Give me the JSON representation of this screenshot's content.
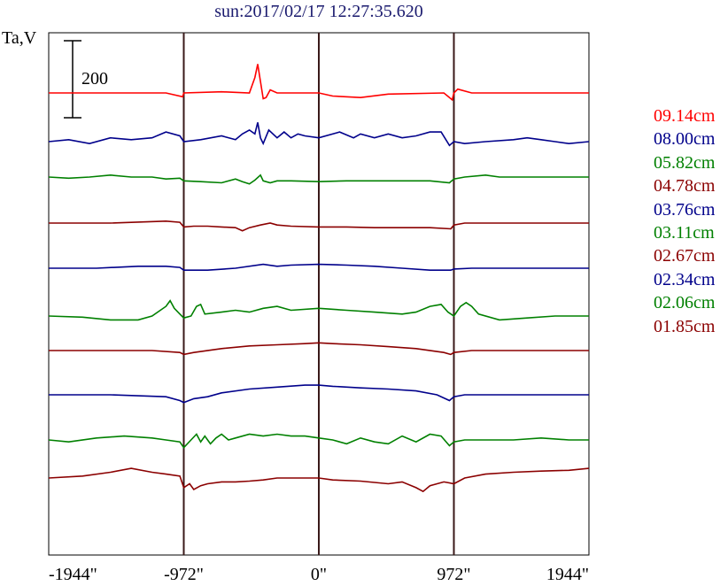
{
  "title": "sun:2017/02/17 12:27:35.620",
  "ylabel": "Ta,V",
  "scale_bar": {
    "value": 200,
    "label": "200"
  },
  "chart_data": {
    "type": "line",
    "xlim": [
      -1944,
      1944
    ],
    "x_ticks": [
      -1944,
      -972,
      0,
      972,
      1944
    ],
    "x_tick_labels": [
      "-1944\"",
      "-972\"",
      "0\"",
      "972\"",
      "1944\""
    ],
    "vertical_lines_at": [
      -972,
      0,
      972
    ],
    "grid": false,
    "legend_placement": "right",
    "series": [
      {
        "name": "09.14cm",
        "color": "#ff0000",
        "base": 0,
        "points": [
          [
            -1944,
            0
          ],
          [
            -1100,
            0
          ],
          [
            -980,
            -10
          ],
          [
            -972,
            0
          ],
          [
            -700,
            3
          ],
          [
            -500,
            0
          ],
          [
            -460,
            40
          ],
          [
            -440,
            75
          ],
          [
            -420,
            30
          ],
          [
            -400,
            -15
          ],
          [
            -380,
            -12
          ],
          [
            -350,
            8
          ],
          [
            -300,
            0
          ],
          [
            -100,
            0
          ],
          [
            0,
            0
          ],
          [
            100,
            -8
          ],
          [
            300,
            -12
          ],
          [
            500,
            -3
          ],
          [
            900,
            0
          ],
          [
            960,
            -18
          ],
          [
            972,
            0
          ],
          [
            1000,
            10
          ],
          [
            1100,
            0
          ],
          [
            1944,
            0
          ]
        ]
      },
      {
        "name": "08.00cm",
        "color": "#00008b",
        "base": 0,
        "points": [
          [
            -1944,
            0
          ],
          [
            -1800,
            5
          ],
          [
            -1650,
            -5
          ],
          [
            -1500,
            10
          ],
          [
            -1350,
            5
          ],
          [
            -1200,
            10
          ],
          [
            -1100,
            25
          ],
          [
            -1000,
            15
          ],
          [
            -972,
            0
          ],
          [
            -850,
            5
          ],
          [
            -700,
            15
          ],
          [
            -600,
            5
          ],
          [
            -550,
            20
          ],
          [
            -500,
            30
          ],
          [
            -460,
            20
          ],
          [
            -440,
            50
          ],
          [
            -420,
            10
          ],
          [
            -400,
            -5
          ],
          [
            -360,
            30
          ],
          [
            -300,
            10
          ],
          [
            -250,
            25
          ],
          [
            -200,
            10
          ],
          [
            -150,
            20
          ],
          [
            -100,
            15
          ],
          [
            0,
            10
          ],
          [
            150,
            25
          ],
          [
            250,
            10
          ],
          [
            300,
            20
          ],
          [
            400,
            10
          ],
          [
            500,
            20
          ],
          [
            600,
            10
          ],
          [
            700,
            15
          ],
          [
            800,
            25
          ],
          [
            880,
            25
          ],
          [
            940,
            -10
          ],
          [
            972,
            0
          ],
          [
            1050,
            -5
          ],
          [
            1200,
            0
          ],
          [
            1400,
            5
          ],
          [
            1500,
            10
          ],
          [
            1600,
            5
          ],
          [
            1700,
            0
          ],
          [
            1800,
            -5
          ],
          [
            1944,
            0
          ]
        ]
      },
      {
        "name": "05.82cm",
        "color": "#008000",
        "base": 0,
        "points": [
          [
            -1944,
            0
          ],
          [
            -1800,
            -3
          ],
          [
            -1650,
            0
          ],
          [
            -1500,
            5
          ],
          [
            -1350,
            0
          ],
          [
            -1200,
            0
          ],
          [
            -1100,
            -5
          ],
          [
            -1000,
            -3
          ],
          [
            -972,
            -10
          ],
          [
            -850,
            -12
          ],
          [
            -700,
            -15
          ],
          [
            -600,
            -5
          ],
          [
            -550,
            -12
          ],
          [
            -500,
            -18
          ],
          [
            -460,
            -8
          ],
          [
            -420,
            5
          ],
          [
            -400,
            -10
          ],
          [
            -350,
            -15
          ],
          [
            -300,
            -10
          ],
          [
            -200,
            -10
          ],
          [
            0,
            -12
          ],
          [
            200,
            -10
          ],
          [
            400,
            -10
          ],
          [
            600,
            -10
          ],
          [
            800,
            -10
          ],
          [
            940,
            -15
          ],
          [
            972,
            -5
          ],
          [
            1050,
            0
          ],
          [
            1200,
            5
          ],
          [
            1300,
            0
          ],
          [
            1500,
            0
          ],
          [
            1944,
            0
          ]
        ]
      },
      {
        "name": "04.78cm",
        "color": "#8b0000",
        "base": 0,
        "points": [
          [
            -1944,
            0
          ],
          [
            -1500,
            0
          ],
          [
            -1100,
            5
          ],
          [
            -1000,
            2
          ],
          [
            -972,
            -10
          ],
          [
            -900,
            -8
          ],
          [
            -800,
            -8
          ],
          [
            -700,
            -10
          ],
          [
            -600,
            -12
          ],
          [
            -550,
            -20
          ],
          [
            -500,
            -12
          ],
          [
            -420,
            -5
          ],
          [
            -350,
            0
          ],
          [
            -300,
            -5
          ],
          [
            -200,
            -8
          ],
          [
            0,
            -10
          ],
          [
            200,
            -10
          ],
          [
            400,
            -12
          ],
          [
            600,
            -12
          ],
          [
            800,
            -12
          ],
          [
            950,
            -15
          ],
          [
            972,
            -5
          ],
          [
            1050,
            0
          ],
          [
            1200,
            0
          ],
          [
            1944,
            0
          ]
        ]
      },
      {
        "name": "03.76cm",
        "color": "#00008b",
        "base": 0,
        "points": [
          [
            -1944,
            0
          ],
          [
            -1600,
            0
          ],
          [
            -1300,
            5
          ],
          [
            -1100,
            5
          ],
          [
            -1000,
            2
          ],
          [
            -972,
            -5
          ],
          [
            -800,
            -5
          ],
          [
            -600,
            0
          ],
          [
            -400,
            10
          ],
          [
            -300,
            5
          ],
          [
            -200,
            8
          ],
          [
            0,
            10
          ],
          [
            200,
            8
          ],
          [
            400,
            5
          ],
          [
            600,
            0
          ],
          [
            800,
            -5
          ],
          [
            950,
            -5
          ],
          [
            972,
            -2
          ],
          [
            1100,
            0
          ],
          [
            1300,
            0
          ],
          [
            1944,
            0
          ]
        ]
      },
      {
        "name": "03.11cm",
        "color": "#008000",
        "base": 0,
        "points": [
          [
            -1944,
            0
          ],
          [
            -1700,
            -3
          ],
          [
            -1500,
            -10
          ],
          [
            -1300,
            -10
          ],
          [
            -1200,
            0
          ],
          [
            -1100,
            25
          ],
          [
            -1070,
            40
          ],
          [
            -1040,
            20
          ],
          [
            -1000,
            5
          ],
          [
            -972,
            -5
          ],
          [
            -920,
            0
          ],
          [
            -880,
            25
          ],
          [
            -850,
            30
          ],
          [
            -820,
            5
          ],
          [
            -700,
            10
          ],
          [
            -600,
            15
          ],
          [
            -500,
            10
          ],
          [
            -400,
            20
          ],
          [
            -300,
            25
          ],
          [
            -200,
            15
          ],
          [
            0,
            20
          ],
          [
            200,
            15
          ],
          [
            400,
            10
          ],
          [
            600,
            5
          ],
          [
            700,
            10
          ],
          [
            800,
            25
          ],
          [
            880,
            30
          ],
          [
            930,
            10
          ],
          [
            972,
            0
          ],
          [
            1020,
            25
          ],
          [
            1060,
            35
          ],
          [
            1100,
            25
          ],
          [
            1150,
            5
          ],
          [
            1300,
            -10
          ],
          [
            1500,
            -5
          ],
          [
            1700,
            0
          ],
          [
            1944,
            0
          ]
        ]
      },
      {
        "name": "02.67cm",
        "color": "#8b0000",
        "base": 0,
        "points": [
          [
            -1944,
            0
          ],
          [
            -1200,
            0
          ],
          [
            -1000,
            -5
          ],
          [
            -972,
            -10
          ],
          [
            -900,
            -5
          ],
          [
            -700,
            5
          ],
          [
            -500,
            12
          ],
          [
            -300,
            15
          ],
          [
            -100,
            18
          ],
          [
            0,
            20
          ],
          [
            100,
            18
          ],
          [
            300,
            15
          ],
          [
            500,
            10
          ],
          [
            700,
            5
          ],
          [
            900,
            -5
          ],
          [
            950,
            -10
          ],
          [
            972,
            -5
          ],
          [
            1100,
            0
          ],
          [
            1944,
            0
          ]
        ]
      },
      {
        "name": "02.34cm",
        "color": "#00008b",
        "base": 0,
        "points": [
          [
            -1944,
            0
          ],
          [
            -1500,
            0
          ],
          [
            -1100,
            -5
          ],
          [
            -1000,
            -15
          ],
          [
            -972,
            -20
          ],
          [
            -900,
            -10
          ],
          [
            -800,
            -5
          ],
          [
            -700,
            5
          ],
          [
            -500,
            15
          ],
          [
            -300,
            20
          ],
          [
            -100,
            25
          ],
          [
            0,
            25
          ],
          [
            100,
            22
          ],
          [
            300,
            18
          ],
          [
            500,
            15
          ],
          [
            700,
            10
          ],
          [
            850,
            0
          ],
          [
            940,
            -15
          ],
          [
            972,
            -5
          ],
          [
            1050,
            0
          ],
          [
            1944,
            0
          ]
        ]
      },
      {
        "name": "02.06cm",
        "color": "#008000",
        "base": 0,
        "points": [
          [
            -1944,
            0
          ],
          [
            -1800,
            -5
          ],
          [
            -1600,
            5
          ],
          [
            -1400,
            10
          ],
          [
            -1200,
            5
          ],
          [
            -1100,
            0
          ],
          [
            -1000,
            -5
          ],
          [
            -972,
            -20
          ],
          [
            -920,
            0
          ],
          [
            -880,
            15
          ],
          [
            -850,
            -5
          ],
          [
            -820,
            10
          ],
          [
            -780,
            -10
          ],
          [
            -740,
            5
          ],
          [
            -700,
            15
          ],
          [
            -650,
            0
          ],
          [
            -600,
            5
          ],
          [
            -500,
            15
          ],
          [
            -400,
            10
          ],
          [
            -300,
            15
          ],
          [
            -200,
            10
          ],
          [
            -100,
            10
          ],
          [
            0,
            5
          ],
          [
            100,
            0
          ],
          [
            200,
            -10
          ],
          [
            300,
            5
          ],
          [
            400,
            -5
          ],
          [
            500,
            -10
          ],
          [
            600,
            10
          ],
          [
            700,
            -5
          ],
          [
            800,
            15
          ],
          [
            880,
            10
          ],
          [
            940,
            -15
          ],
          [
            972,
            -5
          ],
          [
            1050,
            0
          ],
          [
            1200,
            0
          ],
          [
            1400,
            0
          ],
          [
            1600,
            5
          ],
          [
            1800,
            0
          ],
          [
            1944,
            0
          ]
        ]
      },
      {
        "name": "01.85cm",
        "color": "#8b0000",
        "base": 0,
        "points": [
          [
            -1944,
            0
          ],
          [
            -1700,
            5
          ],
          [
            -1500,
            15
          ],
          [
            -1350,
            25
          ],
          [
            -1200,
            15
          ],
          [
            -1100,
            10
          ],
          [
            -1000,
            5
          ],
          [
            -972,
            -25
          ],
          [
            -930,
            -15
          ],
          [
            -900,
            -30
          ],
          [
            -850,
            -20
          ],
          [
            -800,
            -15
          ],
          [
            -700,
            -10
          ],
          [
            -600,
            -10
          ],
          [
            -500,
            -8
          ],
          [
            -400,
            -5
          ],
          [
            -300,
            0
          ],
          [
            -200,
            0
          ],
          [
            -100,
            0
          ],
          [
            0,
            0
          ],
          [
            100,
            -5
          ],
          [
            300,
            -8
          ],
          [
            500,
            -15
          ],
          [
            600,
            -10
          ],
          [
            700,
            -25
          ],
          [
            750,
            -35
          ],
          [
            800,
            -20
          ],
          [
            900,
            -10
          ],
          [
            972,
            -15
          ],
          [
            1050,
            0
          ],
          [
            1200,
            10
          ],
          [
            1400,
            15
          ],
          [
            1600,
            18
          ],
          [
            1800,
            20
          ],
          [
            1944,
            25
          ]
        ]
      }
    ]
  }
}
